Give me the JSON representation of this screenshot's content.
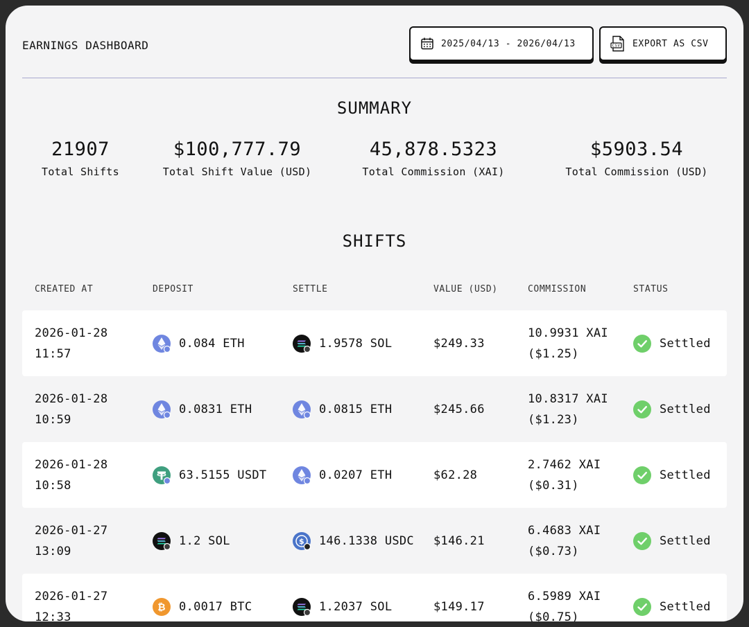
{
  "header": {
    "title": "EARNINGS DASHBOARD",
    "date_range": "2025/04/13 - 2026/04/13",
    "export_label": "EXPORT AS CSV",
    "csv_icon_text": "CSV"
  },
  "summary": {
    "title": "SUMMARY",
    "stats": [
      {
        "value": "21907",
        "label": "Total Shifts"
      },
      {
        "value": "$100,777.79",
        "label": "Total Shift Value (USD)"
      },
      {
        "value": "45,878.5323",
        "label": "Total Commission (XAI)"
      },
      {
        "value": "$5903.54",
        "label": "Total Commission (USD)"
      }
    ]
  },
  "shifts": {
    "title": "SHIFTS",
    "columns": [
      "CREATED AT",
      "DEPOSIT",
      "SETTLE",
      "VALUE (USD)",
      "COMMISSION",
      "STATUS"
    ],
    "rows": [
      {
        "date": "2026-01-28",
        "time": "11:57",
        "deposit": "0.084 ETH",
        "deposit_icon": "eth-icon",
        "settle": "1.9578 SOL",
        "settle_icon": "sol-icon",
        "value": "$249.33",
        "commission": "10.9931 XAI",
        "commission_usd": "($1.25)",
        "status": "Settled"
      },
      {
        "date": "2026-01-28",
        "time": "10:59",
        "deposit": "0.0831 ETH",
        "deposit_icon": "eth-icon",
        "settle": "0.0815 ETH",
        "settle_icon": "eth-icon",
        "value": "$245.66",
        "commission": "10.8317 XAI",
        "commission_usd": "($1.23)",
        "status": "Settled"
      },
      {
        "date": "2026-01-28",
        "time": "10:58",
        "deposit": "63.5155 USDT",
        "deposit_icon": "usdt-icon",
        "settle": "0.0207 ETH",
        "settle_icon": "eth-icon",
        "value": "$62.28",
        "commission": "2.7462 XAI",
        "commission_usd": "($0.31)",
        "status": "Settled"
      },
      {
        "date": "2026-01-27",
        "time": "13:09",
        "deposit": "1.2 SOL",
        "deposit_icon": "sol-icon",
        "settle": "146.1338 USDC",
        "settle_icon": "usdc-icon",
        "value": "$146.21",
        "commission": "6.4683 XAI",
        "commission_usd": "($0.73)",
        "status": "Settled"
      },
      {
        "date": "2026-01-27",
        "time": "12:33",
        "deposit": "0.0017 BTC",
        "deposit_icon": "btc-icon",
        "settle": "1.2037 SOL",
        "settle_icon": "sol-icon",
        "value": "$149.17",
        "commission": "6.5989 XAI",
        "commission_usd": "($0.75)",
        "status": "Settled"
      }
    ]
  },
  "colors": {
    "background": "#f4f4f5",
    "divider": "#a8a8cf",
    "settled": "#6fcf6a",
    "eth": "#6f86e0",
    "usdt": "#3f9f7f",
    "btc": "#f0972e",
    "sol": "#111111",
    "usdc": "#4a74c9"
  }
}
